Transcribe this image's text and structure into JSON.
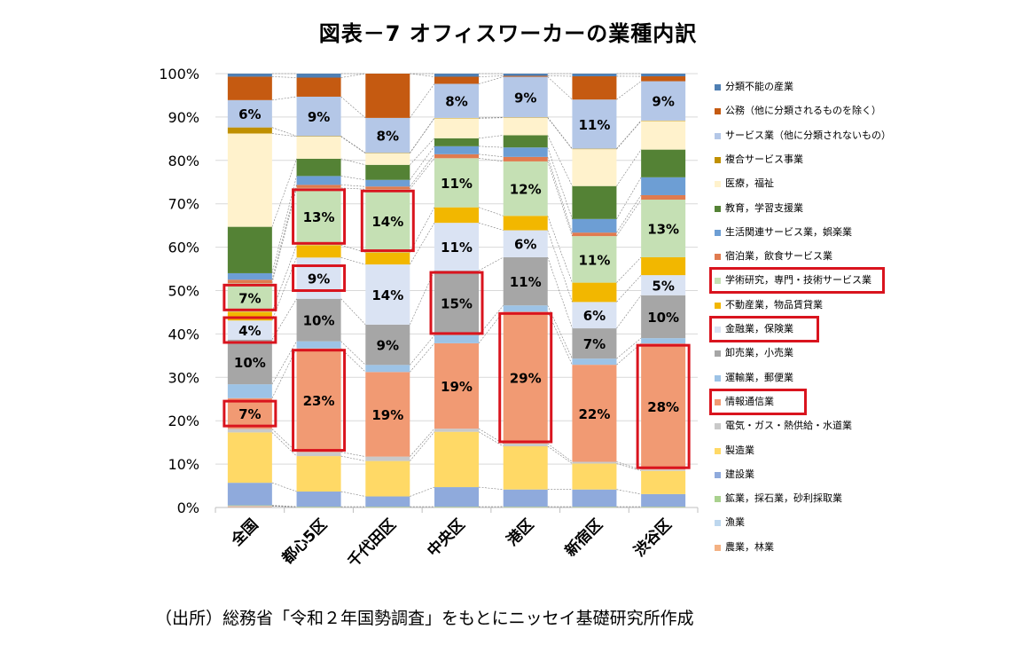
{
  "title": "図表－7 オフィスワーカーの業種内訳",
  "source": "（出所）総務省「令和２年国勢調査」をもとにニッセイ基礎研究所作成",
  "chart_data": {
    "type": "bar",
    "stacked": true,
    "normalized": true,
    "ylim": [
      0,
      100
    ],
    "yticks": [
      "0%",
      "10%",
      "20%",
      "30%",
      "40%",
      "50%",
      "60%",
      "70%",
      "80%",
      "90%",
      "100%"
    ],
    "categories": [
      "全国",
      "都心5区",
      "千代田区",
      "中央区",
      "港区",
      "新宿区",
      "渋谷区"
    ],
    "legend_position": "right",
    "series": [
      {
        "name": "農業，林業",
        "color": "#f4b183",
        "values": [
          0.3,
          0.1,
          0.1,
          0.1,
          0.1,
          0.1,
          0.1
        ]
      },
      {
        "name": "漁業",
        "color": "#bdd7ee",
        "values": [
          0.1,
          0.0,
          0.0,
          0.0,
          0.0,
          0.0,
          0.0
        ]
      },
      {
        "name": "鉱業，採石業，砂利採取業",
        "color": "#a9d18e",
        "values": [
          0.1,
          0.1,
          0.1,
          0.1,
          0.1,
          0.1,
          0.1
        ]
      },
      {
        "name": "建設業",
        "color": "#8faadc",
        "values": [
          5.2,
          3.4,
          2.3,
          4.4,
          3.8,
          3.9,
          2.8
        ]
      },
      {
        "name": "製造業",
        "color": "#ffd966",
        "values": [
          11.6,
          8.0,
          8.0,
          12.5,
          9.6,
          5.9,
          5.2
        ]
      },
      {
        "name": "電気・ガス・熱供給・水道業",
        "color": "#c9c9c9",
        "values": [
          0.8,
          0.9,
          1.0,
          0.7,
          0.6,
          0.4,
          0.3
        ]
      },
      {
        "name": "情報通信業",
        "color": "#f19a73",
        "values": [
          7.1,
          23.4,
          19.1,
          19.3,
          29.3,
          22.1,
          28.2
        ]
      },
      {
        "name": "運輸業，郵便業",
        "color": "#9dc3e6",
        "values": [
          3.2,
          1.6,
          1.6,
          1.8,
          1.4,
          1.4,
          1.2
        ]
      },
      {
        "name": "卸売業，小売業",
        "color": "#a6a6a6",
        "values": [
          10.3,
          9.6,
          9.1,
          14.6,
          10.7,
          6.9,
          9.6
        ]
      },
      {
        "name": "金融業，保険業",
        "color": "#dae3f3",
        "values": [
          4.4,
          9.3,
          13.6,
          10.8,
          6.0,
          6.0,
          4.5
        ]
      },
      {
        "name": "不動産業，物品賃貸業",
        "color": "#f2b700",
        "values": [
          2.0,
          2.8,
          2.7,
          3.5,
          3.2,
          4.4,
          4.0
        ]
      },
      {
        "name": "学術研究，専門・技術サービス業",
        "color": "#c5e0b4",
        "values": [
          6.6,
          12.9,
          14.3,
          11.1,
          12.1,
          10.6,
          12.9
        ]
      },
      {
        "name": "宿泊業，飲食サービス業",
        "color": "#e07b4f",
        "values": [
          0.8,
          0.7,
          0.6,
          0.9,
          1.0,
          0.8,
          1.0
        ]
      },
      {
        "name": "生活関連サービス業，娯楽業",
        "color": "#6d9ed4",
        "values": [
          1.5,
          2.0,
          1.5,
          1.8,
          2.1,
          3.1,
          4.0
        ]
      },
      {
        "name": "教育，学習支援業",
        "color": "#548235",
        "values": [
          10.7,
          3.9,
          3.4,
          1.8,
          2.7,
          7.5,
          6.2
        ]
      },
      {
        "name": "医療，福祉",
        "color": "#fff2cc",
        "values": [
          21.5,
          5.0,
          2.6,
          4.5,
          3.9,
          8.4,
          6.4
        ]
      },
      {
        "name": "複合サービス事業",
        "color": "#c09000",
        "values": [
          1.4,
          0.1,
          0.1,
          0.1,
          0.1,
          0.1,
          0.1
        ]
      },
      {
        "name": "サービス業（他に分類されないもの）",
        "color": "#b4c7e7",
        "values": [
          6.3,
          8.9,
          7.9,
          7.7,
          9.0,
          11.2,
          8.8
        ]
      },
      {
        "name": "公務（他に分類されるものを除く）",
        "color": "#c55a11",
        "values": [
          5.4,
          4.3,
          10.0,
          1.6,
          0.2,
          5.3,
          1.1
        ]
      },
      {
        "name": "分類不能の産業",
        "color": "#4f7fb3",
        "values": [
          0.7,
          0.9,
          0.0,
          0.7,
          0.5,
          0.6,
          0.6
        ]
      }
    ],
    "data_labels": [
      {
        "category": "全国",
        "series": "情報通信業",
        "text": "7%"
      },
      {
        "category": "全国",
        "series": "卸売業，小売業",
        "text": "10%"
      },
      {
        "category": "全国",
        "series": "金融業，保険業",
        "text": "4%"
      },
      {
        "category": "全国",
        "series": "学術研究，専門・技術サービス業",
        "text": "7%"
      },
      {
        "category": "全国",
        "series": "サービス業（他に分類されないもの）",
        "text": "6%"
      },
      {
        "category": "都心5区",
        "series": "情報通信業",
        "text": "23%"
      },
      {
        "category": "都心5区",
        "series": "卸売業，小売業",
        "text": "10%"
      },
      {
        "category": "都心5区",
        "series": "金融業，保険業",
        "text": "9%"
      },
      {
        "category": "都心5区",
        "series": "学術研究，専門・技術サービス業",
        "text": "13%"
      },
      {
        "category": "都心5区",
        "series": "サービス業（他に分類されないもの）",
        "text": "9%"
      },
      {
        "category": "千代田区",
        "series": "情報通信業",
        "text": "19%"
      },
      {
        "category": "千代田区",
        "series": "卸売業，小売業",
        "text": "9%"
      },
      {
        "category": "千代田区",
        "series": "金融業，保険業",
        "text": "14%"
      },
      {
        "category": "千代田区",
        "series": "学術研究，専門・技術サービス業",
        "text": "14%"
      },
      {
        "category": "千代田区",
        "series": "サービス業（他に分類されないもの）",
        "text": "8%"
      },
      {
        "category": "中央区",
        "series": "情報通信業",
        "text": "19%"
      },
      {
        "category": "中央区",
        "series": "卸売業，小売業",
        "text": "15%"
      },
      {
        "category": "中央区",
        "series": "金融業，保険業",
        "text": "11%"
      },
      {
        "category": "中央区",
        "series": "学術研究，専門・技術サービス業",
        "text": "11%"
      },
      {
        "category": "中央区",
        "series": "サービス業（他に分類されないもの）",
        "text": "8%"
      },
      {
        "category": "港区",
        "series": "情報通信業",
        "text": "29%"
      },
      {
        "category": "港区",
        "series": "卸売業，小売業",
        "text": "11%"
      },
      {
        "category": "港区",
        "series": "金融業，保険業",
        "text": "6%"
      },
      {
        "category": "港区",
        "series": "学術研究，専門・技術サービス業",
        "text": "12%"
      },
      {
        "category": "港区",
        "series": "サービス業（他に分類されないもの）",
        "text": "9%"
      },
      {
        "category": "新宿区",
        "series": "情報通信業",
        "text": "22%"
      },
      {
        "category": "新宿区",
        "series": "卸売業，小売業",
        "text": "7%"
      },
      {
        "category": "新宿区",
        "series": "金融業，保険業",
        "text": "6%"
      },
      {
        "category": "新宿区",
        "series": "学術研究，専門・技術サービス業",
        "text": "11%"
      },
      {
        "category": "新宿区",
        "series": "サービス業（他に分類されないもの）",
        "text": "11%"
      },
      {
        "category": "渋谷区",
        "series": "情報通信業",
        "text": "28%"
      },
      {
        "category": "渋谷区",
        "series": "卸売業，小売業",
        "text": "10%"
      },
      {
        "category": "渋谷区",
        "series": "金融業，保険業",
        "text": "5%"
      },
      {
        "category": "渋谷区",
        "series": "学術研究，専門・技術サービス業",
        "text": "13%"
      },
      {
        "category": "渋谷区",
        "series": "サービス業（他に分類されないもの）",
        "text": "9%"
      }
    ],
    "highlighted_labels": [
      {
        "category": "全国",
        "series": "情報通信業"
      },
      {
        "category": "全国",
        "series": "金融業，保険業"
      },
      {
        "category": "全国",
        "series": "学術研究，専門・技術サービス業"
      },
      {
        "category": "都心5区",
        "series": "情報通信業"
      },
      {
        "category": "都心5区",
        "series": "金融業，保険業"
      },
      {
        "category": "都心5区",
        "series": "学術研究，専門・技術サービス業"
      },
      {
        "category": "千代田区",
        "series": "学術研究，専門・技術サービス業"
      },
      {
        "category": "中央区",
        "series": "卸売業，小売業"
      },
      {
        "category": "港区",
        "series": "情報通信業"
      },
      {
        "category": "渋谷区",
        "series": "情報通信業"
      }
    ],
    "highlighted_legend": [
      "学術研究，専門・技術サービス業",
      "金融業，保険業",
      "情報通信業"
    ]
  }
}
